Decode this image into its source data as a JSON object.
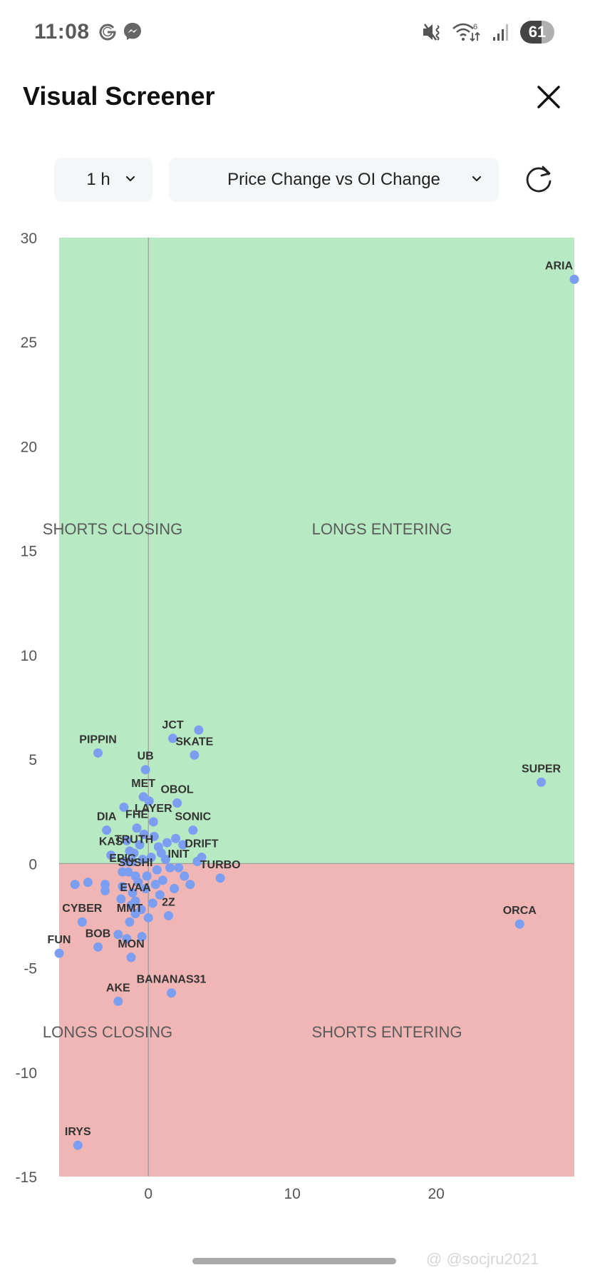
{
  "status_bar": {
    "time": "11:08",
    "app_icons": [
      "google-icon",
      "messenger-icon"
    ],
    "right_icons": [
      "mute-vibrate-icon",
      "wifi-icon",
      "signal-icon"
    ],
    "wifi_badge": "6",
    "battery": "61"
  },
  "header": {
    "title": "Visual Screener",
    "close_icon": "close-icon"
  },
  "controls": {
    "timeframe": {
      "value": "1 h",
      "icon": "chevron-down-icon"
    },
    "metric": {
      "value": "Price Change vs OI Change",
      "icon": "chevron-down-icon"
    },
    "refresh_icon": "refresh-icon"
  },
  "colors": {
    "positive_zone": "#b7eac2",
    "negative_zone": "#f0b5b5",
    "dot": "#7b9ef0",
    "axis_line": "#9a9a9a",
    "tick_text": "#555555",
    "quadrant_text": "#5a5a5a",
    "point_label": "#333333"
  },
  "chart_data": {
    "type": "scatter",
    "title": "Price Change vs OI Change",
    "xlabel": "",
    "ylabel": "",
    "xlim": [
      -6.2,
      29.6
    ],
    "ylim": [
      -15,
      30
    ],
    "x_ticks": [
      0,
      10,
      20
    ],
    "y_ticks": [
      30,
      25,
      20,
      15,
      10,
      5,
      0,
      -5,
      -10,
      -15
    ],
    "grid": false,
    "zero_lines": true,
    "quadrant_labels": {
      "top_left": "SHORTS CLOSING",
      "top_right": "LONGS ENTERING",
      "bottom_left": "LONGS CLOSING",
      "bottom_right": "SHORTS ENTERING"
    },
    "points": [
      {
        "label": "ARIA",
        "x": 29.6,
        "y": 28.0
      },
      {
        "label": "SUPER",
        "x": 27.3,
        "y": 3.9
      },
      {
        "label": "ORCA",
        "x": 25.8,
        "y": -2.9
      },
      {
        "label": "JCT",
        "x": 1.7,
        "y": 6.0
      },
      {
        "label": "",
        "x": 3.5,
        "y": 6.4
      },
      {
        "label": "SKATE",
        "x": 3.2,
        "y": 5.2
      },
      {
        "label": "PIPPIN",
        "x": -3.5,
        "y": 5.3
      },
      {
        "label": "UB",
        "x": -0.2,
        "y": 4.5
      },
      {
        "label": "MET",
        "x": -0.35,
        "y": 3.2
      },
      {
        "label": "",
        "x": 0.05,
        "y": 3.0
      },
      {
        "label": "OBOL",
        "x": 2.0,
        "y": 2.9
      },
      {
        "label": "",
        "x": -1.7,
        "y": 2.7
      },
      {
        "label": "LAYER",
        "x": 0.35,
        "y": 2.0
      },
      {
        "label": "DIA",
        "x": -2.9,
        "y": 1.6
      },
      {
        "label": "FHE",
        "x": -0.8,
        "y": 1.7
      },
      {
        "label": "SONIC",
        "x": 3.1,
        "y": 1.6
      },
      {
        "label": "KAS",
        "x": -2.6,
        "y": 0.4
      },
      {
        "label": "DRIFT",
        "x": 3.7,
        "y": 0.3
      },
      {
        "label": "TRUTH",
        "x": -1.0,
        "y": 0.5
      },
      {
        "label": "INIT",
        "x": 2.1,
        "y": -0.2
      },
      {
        "label": "TURBO",
        "x": 5.0,
        "y": -0.7
      },
      {
        "label": "EPIC",
        "x": -1.8,
        "y": -0.4
      },
      {
        "label": "SUSHI",
        "x": -0.9,
        "y": -0.6
      },
      {
        "label": "EVAA",
        "x": -0.9,
        "y": -1.8
      },
      {
        "label": "2Z",
        "x": 1.4,
        "y": -2.5
      },
      {
        "label": "CYBER",
        "x": -4.6,
        "y": -2.8
      },
      {
        "label": "MMT",
        "x": -1.3,
        "y": -2.8
      },
      {
        "label": "FUN",
        "x": -6.2,
        "y": -4.3
      },
      {
        "label": "BOB",
        "x": -3.5,
        "y": -4.0
      },
      {
        "label": "MON",
        "x": -1.2,
        "y": -4.5
      },
      {
        "label": "AKE",
        "x": -2.1,
        "y": -6.6
      },
      {
        "label": "BANANAS31",
        "x": 1.6,
        "y": -6.2
      },
      {
        "label": "IRYS",
        "x": -4.9,
        "y": -13.5
      },
      {
        "label": "",
        "x": -5.1,
        "y": -1.0
      },
      {
        "label": "",
        "x": -4.2,
        "y": -0.9
      },
      {
        "label": "",
        "x": -3.0,
        "y": -1.0
      },
      {
        "label": "",
        "x": -3.0,
        "y": -1.3
      },
      {
        "label": "",
        "x": -2.1,
        "y": -3.4
      },
      {
        "label": "",
        "x": -1.5,
        "y": -3.6
      },
      {
        "label": "",
        "x": -0.45,
        "y": -3.5
      },
      {
        "label": "",
        "x": 2.9,
        "y": -1.0
      },
      {
        "label": "",
        "x": 1.8,
        "y": -1.2
      },
      {
        "label": "",
        "x": -1.9,
        "y": -1.7
      },
      {
        "label": "",
        "x": 1.3,
        "y": 1.0
      },
      {
        "label": "",
        "x": 1.9,
        "y": 1.2
      },
      {
        "label": "",
        "x": 2.4,
        "y": 0.9
      },
      {
        "label": "",
        "x": 3.4,
        "y": 0.1
      },
      {
        "label": "",
        "x": 2.5,
        "y": -0.6
      },
      {
        "label": "",
        "x": -1.5,
        "y": 1.1
      },
      {
        "label": "",
        "x": -1.3,
        "y": 0.6
      },
      {
        "label": "",
        "x": -1.6,
        "y": 0.1
      },
      {
        "label": "",
        "x": -1.4,
        "y": -0.4
      },
      {
        "label": "",
        "x": -1.8,
        "y": -1.1
      },
      {
        "label": "",
        "x": -1.1,
        "y": -1.4
      },
      {
        "label": "",
        "x": -0.5,
        "y": -2.2
      },
      {
        "label": "",
        "x": 0.3,
        "y": -1.9
      },
      {
        "label": "",
        "x": 0.8,
        "y": -1.5
      },
      {
        "label": "",
        "x": 1.0,
        "y": -0.8
      },
      {
        "label": "",
        "x": 0.6,
        "y": -0.3
      },
      {
        "label": "",
        "x": 0.2,
        "y": 0.3
      },
      {
        "label": "",
        "x": 0.7,
        "y": 0.8
      },
      {
        "label": "",
        "x": 0.4,
        "y": 1.3
      },
      {
        "label": "",
        "x": -0.3,
        "y": 1.4
      },
      {
        "label": "",
        "x": -0.6,
        "y": 0.9
      },
      {
        "label": "",
        "x": -0.4,
        "y": 0.2
      },
      {
        "label": "",
        "x": -0.7,
        "y": -0.9
      },
      {
        "label": "",
        "x": -0.2,
        "y": -1.2
      },
      {
        "label": "",
        "x": 0.5,
        "y": -1.0
      },
      {
        "label": "",
        "x": 1.2,
        "y": 0.2
      },
      {
        "label": "",
        "x": 1.5,
        "y": -0.2
      },
      {
        "label": "",
        "x": -0.9,
        "y": -2.4
      },
      {
        "label": "",
        "x": -1.2,
        "y": -2.0
      },
      {
        "label": "",
        "x": 0.0,
        "y": -2.6
      },
      {
        "label": "",
        "x": 0.9,
        "y": 0.5
      },
      {
        "label": "",
        "x": -1.1,
        "y": 0.1
      },
      {
        "label": "",
        "x": -0.1,
        "y": -0.6
      }
    ]
  },
  "watermark": "@ @socjru2021"
}
